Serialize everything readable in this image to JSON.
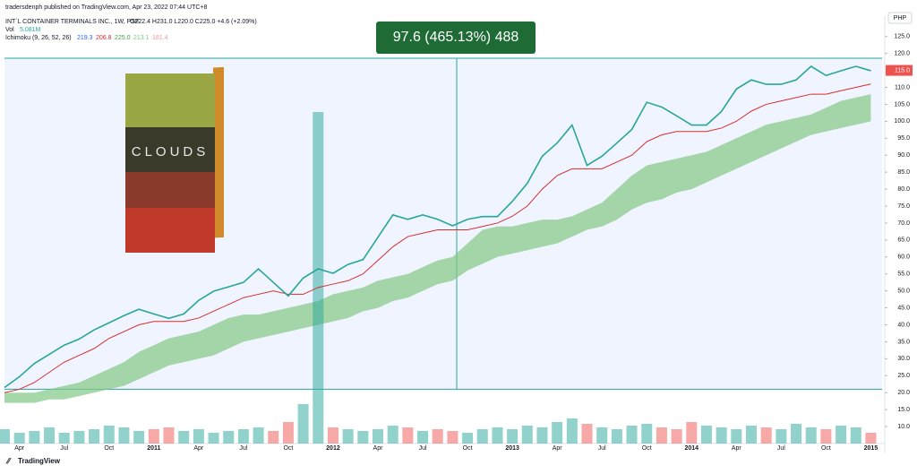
{
  "header": {
    "published": "tradersdenph published on TradingView.com, Apr 23, 2022 07:44 UTC+8",
    "symbol": "INT`L CONTAINER TERMINALS INC., 1W, PSE",
    "ohlc": "O222.4 H231.0 L220.0 C225.0 +4.6 (+2.09%)",
    "volume_label": "Vol",
    "volume_value": "5.081M",
    "indicator": "Ichimoku (9, 26, 52, 26)",
    "indicator_values": [
      "219.3",
      "206.8",
      "225.0",
      "213.1",
      "181.4"
    ],
    "currency": "PHP",
    "logo": "TradingView"
  },
  "chart_data": {
    "type": "ichimoku",
    "measure": {
      "label": "97.6 (465.13%) 488",
      "from": 21.0,
      "to": 118.6
    },
    "last_price": {
      "value": 115,
      "label": "115.0"
    },
    "categories": [
      null,
      "Apr",
      null,
      null,
      "Jul",
      null,
      null,
      "Oct",
      null,
      null,
      "2011",
      null,
      null,
      "Apr",
      null,
      null,
      "Jul",
      null,
      null,
      "Oct",
      null,
      null,
      "2012",
      null,
      null,
      "Apr",
      null,
      null,
      "Jul",
      null,
      null,
      "Oct",
      null,
      null,
      "2013",
      null,
      null,
      "Apr",
      null,
      null,
      "Jul",
      null,
      null,
      "Oct",
      null,
      null,
      "2014",
      null,
      null,
      "Apr",
      null,
      null,
      "Jul",
      null,
      null,
      "Oct",
      null,
      null,
      "2015"
    ],
    "close": {
      "color": "#26a69a",
      "values": [
        21.5,
        24.7,
        28.6,
        31.3,
        34,
        35.8,
        38.5,
        40.6,
        42.7,
        44.6,
        43.2,
        41.9,
        43.2,
        47.2,
        49.9,
        51.2,
        52.5,
        56.5,
        52.5,
        48.5,
        53.8,
        56.5,
        55.2,
        57.8,
        59.2,
        65.8,
        72.4,
        71.1,
        72.4,
        71.1,
        69.2,
        71.1,
        71.9,
        71.9,
        76.4,
        81.7,
        89.7,
        93.6,
        98.9,
        87,
        89.7,
        93.6,
        97.6,
        105.6,
        104.2,
        101.6,
        98.9,
        98.9,
        102.9,
        109.5,
        112.2,
        110.9,
        110.9,
        112.2,
        116.2,
        113.5,
        114.9,
        116.2,
        114.9
      ]
    },
    "base_line": {
      "color": "#d32f2f",
      "values": [
        20,
        21,
        23,
        26,
        29,
        31,
        33,
        36,
        38,
        40,
        41,
        41,
        41,
        42,
        44,
        46,
        48,
        49,
        50,
        49,
        49,
        51,
        52,
        53,
        55,
        59,
        63,
        66,
        67,
        68,
        68,
        68,
        69,
        70,
        72,
        75,
        80,
        84,
        86,
        86,
        86,
        88,
        90,
        94,
        96,
        97,
        97,
        97,
        98,
        100,
        103,
        105,
        106,
        107,
        108,
        108,
        109,
        110,
        111
      ]
    },
    "cloud": {
      "color": "#81c784",
      "top": [
        20,
        20,
        20,
        21,
        22,
        23,
        25,
        27,
        29,
        32,
        34,
        36,
        37,
        38,
        40,
        42,
        43,
        43,
        44,
        45,
        46,
        47,
        49,
        50,
        51,
        53,
        54,
        55,
        57,
        59,
        60,
        64,
        68,
        69,
        69,
        70,
        71,
        71,
        72,
        74,
        76,
        80,
        84,
        87,
        88,
        89,
        90,
        91,
        93,
        95,
        97,
        99,
        100,
        101,
        102,
        104,
        106,
        107,
        108
      ],
      "bottom": [
        17,
        17,
        17,
        18,
        18,
        19,
        20,
        21,
        22,
        24,
        26,
        28,
        29,
        30,
        31,
        33,
        35,
        36,
        37,
        38,
        39,
        40,
        41,
        42,
        44,
        45,
        47,
        48,
        50,
        52,
        53,
        56,
        58,
        60,
        61,
        62,
        63,
        64,
        66,
        68,
        69,
        71,
        74,
        76,
        77,
        79,
        80,
        82,
        84,
        86,
        88,
        90,
        92,
        94,
        96,
        97,
        98,
        99,
        100
      ]
    },
    "volume": {
      "values": [
        8,
        6,
        7,
        9,
        6,
        7,
        8,
        10,
        9,
        7,
        8,
        9,
        7,
        8,
        6,
        7,
        8,
        9,
        7,
        12,
        22,
        185,
        9,
        8,
        7,
        8,
        10,
        9,
        7,
        8,
        7,
        6,
        8,
        9,
        8,
        10,
        9,
        12,
        14,
        11,
        9,
        8,
        10,
        11,
        9,
        8,
        12,
        10,
        9,
        8,
        10,
        9,
        8,
        11,
        9,
        8,
        10,
        9,
        6
      ]
    },
    "ylim": [
      5,
      131
    ],
    "yticks": [
      {
        "value": 10,
        "label": "10.0"
      },
      {
        "value": 15,
        "label": "15.0"
      },
      {
        "value": 20,
        "label": "20.0"
      },
      {
        "value": 25,
        "label": "25.0"
      },
      {
        "value": 30,
        "label": "30.0"
      },
      {
        "value": 35,
        "label": "35.0"
      },
      {
        "value": 40,
        "label": "40.0"
      },
      {
        "value": 45,
        "label": "45.0"
      },
      {
        "value": 50,
        "label": "50.0"
      },
      {
        "value": 55,
        "label": "55.0"
      },
      {
        "value": 60,
        "label": "60.0"
      },
      {
        "value": 65,
        "label": "65.0"
      },
      {
        "value": 70,
        "label": "70.0"
      },
      {
        "value": 75,
        "label": "75.0"
      },
      {
        "value": 80,
        "label": "80.0"
      },
      {
        "value": 85,
        "label": "85.0"
      },
      {
        "value": 90,
        "label": "90.0"
      },
      {
        "value": 95,
        "label": "95.0"
      },
      {
        "value": 100,
        "label": "100.0"
      },
      {
        "value": 105,
        "label": "105.0"
      },
      {
        "value": 110,
        "label": "110.0"
      },
      {
        "value": 120,
        "label": "120.0"
      },
      {
        "value": 125,
        "label": "125.0"
      }
    ]
  }
}
